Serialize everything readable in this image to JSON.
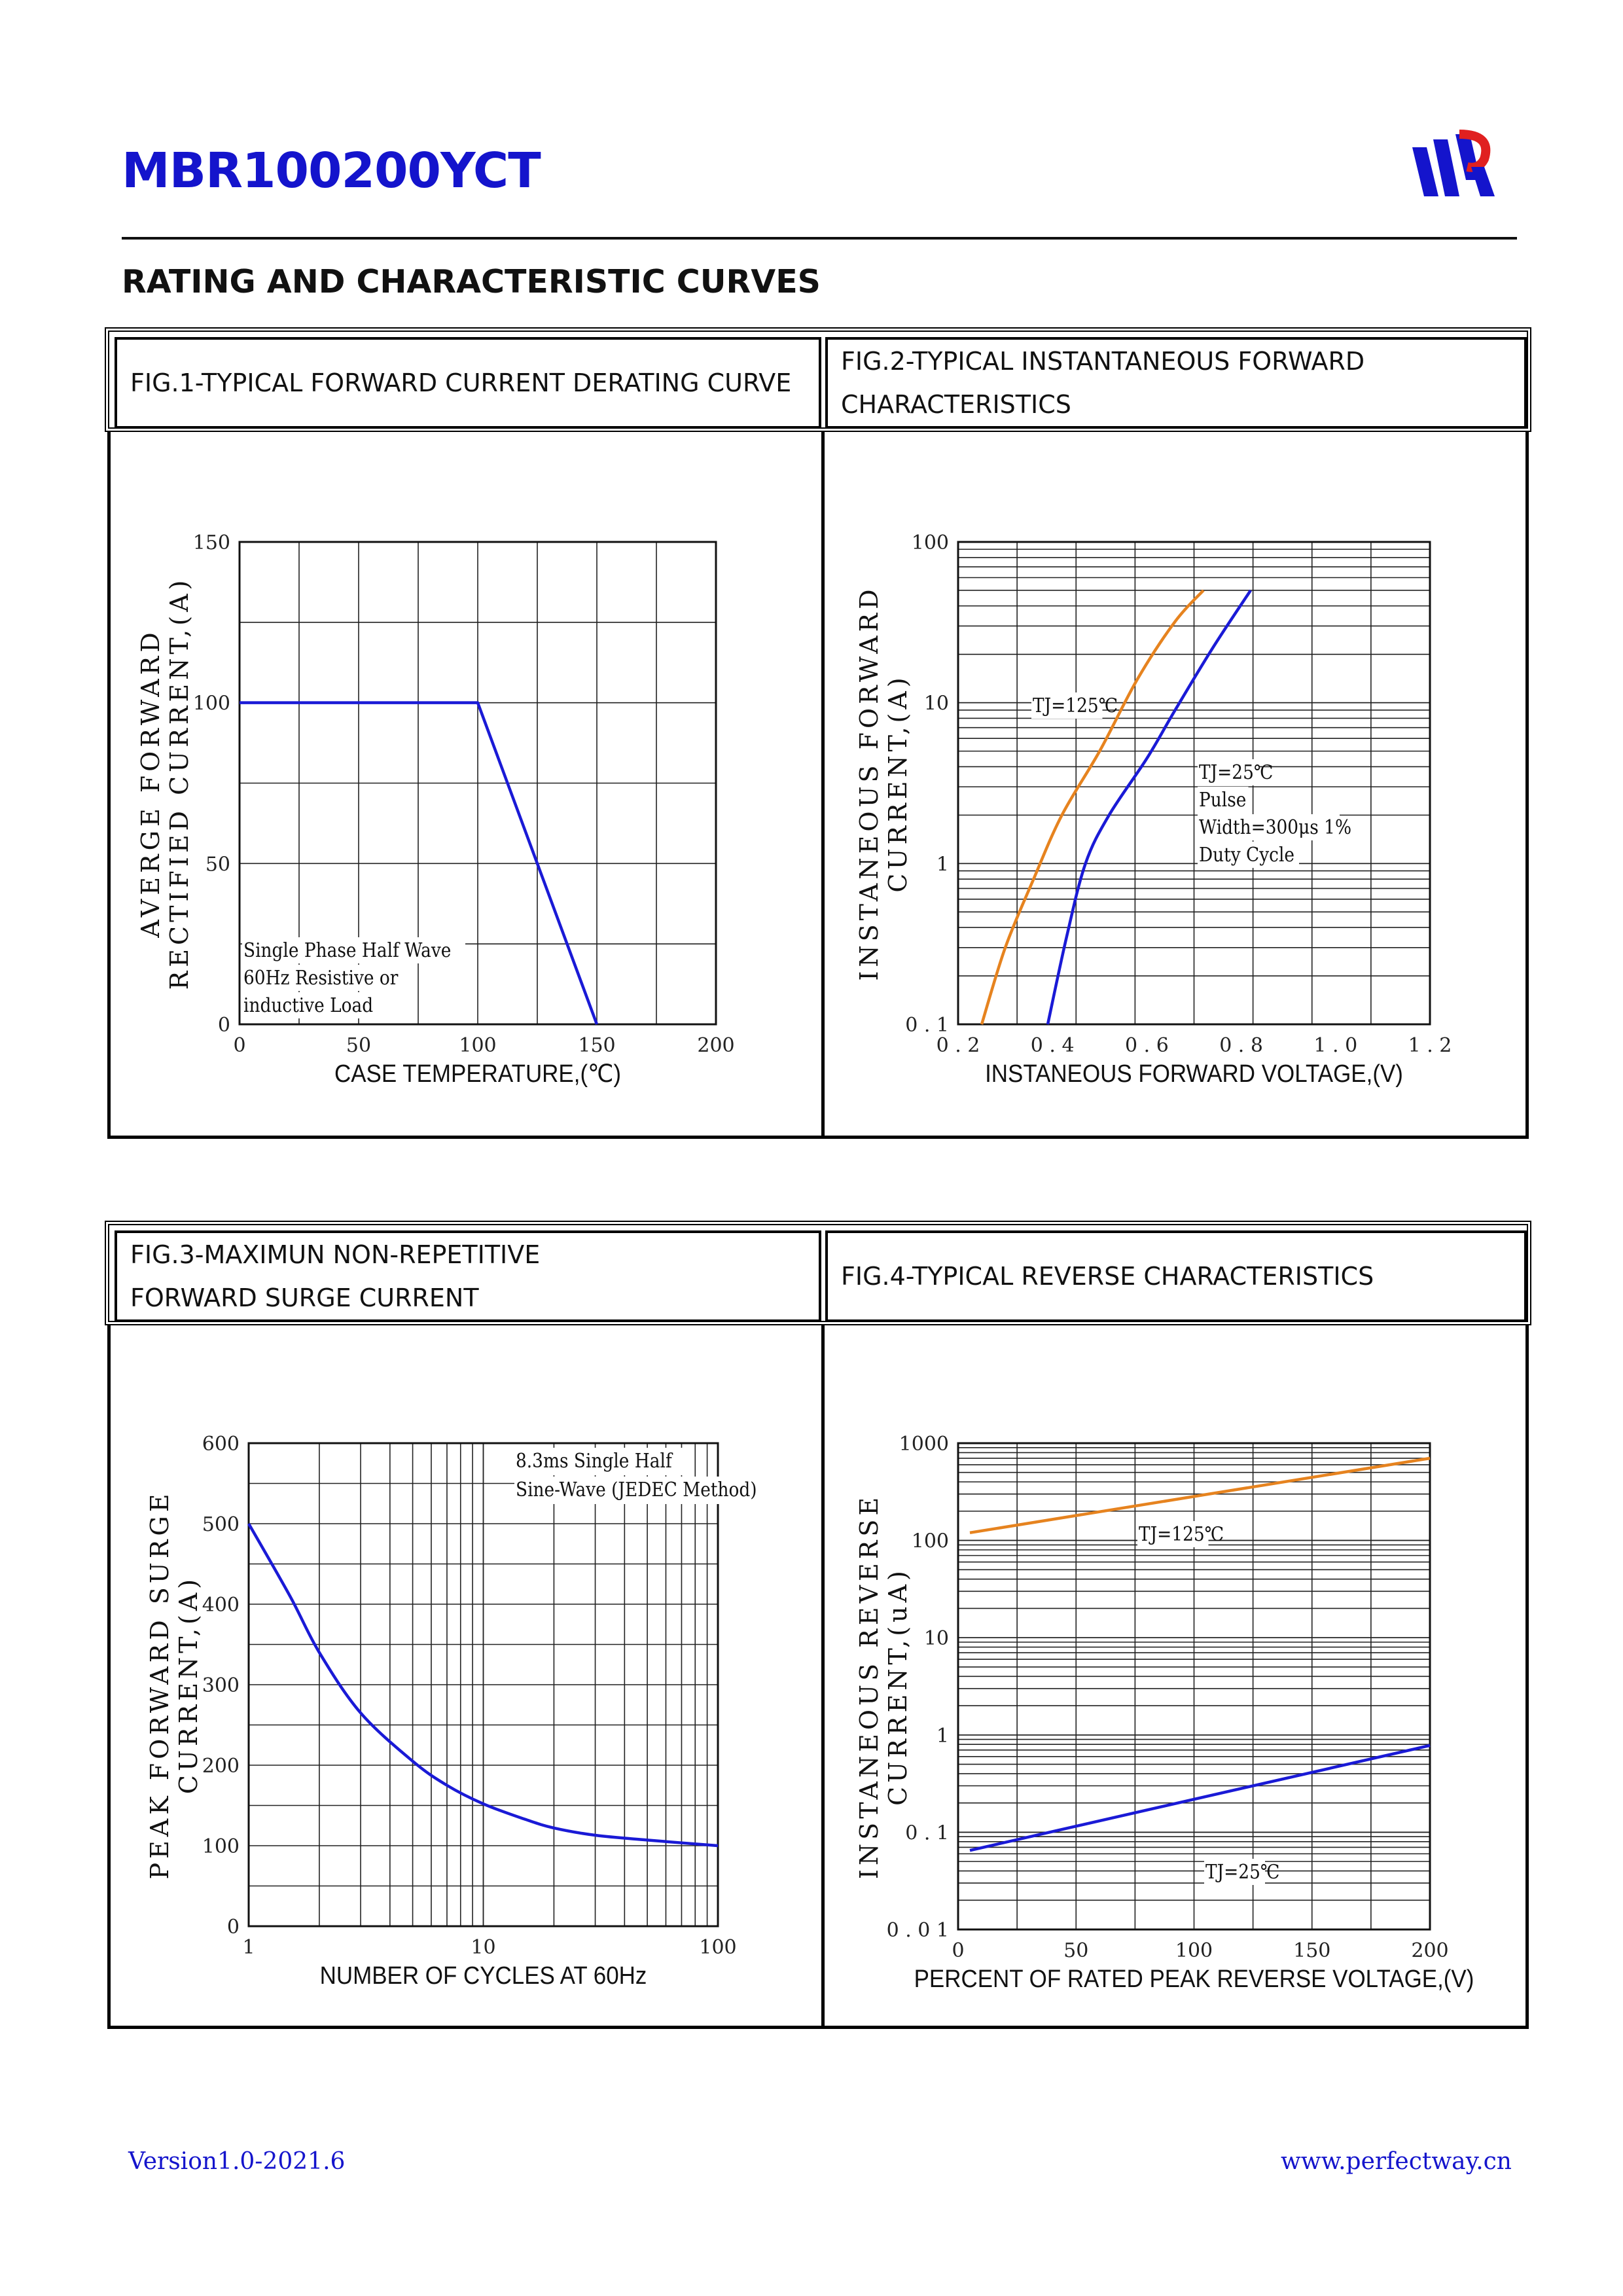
{
  "header": {
    "part_number": "MBR100200YCT",
    "section_title": "RATING AND CHARACTERISTIC CURVES"
  },
  "footer": {
    "version": "Version1.0-2021.6",
    "website": "www.perfectway.cn"
  },
  "colors": {
    "brand_blue": "#1414cc",
    "curve_blue": "#1a1ad6",
    "curve_orange": "#e6831f"
  },
  "figures": [
    {
      "title": "FIG.1-TYPICAL FORWARD CURRENT DERATING CURVE"
    },
    {
      "title_line1": "FIG.2-TYPICAL INSTANTANEOUS FORWARD",
      "title_line2": "CHARACTERISTICS"
    },
    {
      "title_line1": "FIG.3-MAXIMUN NON-REPETITIVE",
      "title_line2": "FORWARD SURGE CURRENT"
    },
    {
      "title": "FIG.4-TYPICAL REVERSE CHARACTERISTICS"
    }
  ],
  "chart_data": [
    {
      "type": "line",
      "title": "FIG.1-TYPICAL FORWARD CURRENT DERATING CURVE",
      "xlabel": "CASE TEMPERATURE,(℃)",
      "ylabel_line1": "AVERGE FORWARD",
      "ylabel_line2": "RECTIFIED CURRENT,(A)",
      "xlim": [
        0,
        200
      ],
      "ylim": [
        0,
        150
      ],
      "x_ticks": [
        "0",
        "50",
        "100",
        "150",
        "200"
      ],
      "y_ticks": [
        "0",
        "50",
        "100",
        "150"
      ],
      "annotation": [
        "Single Phase Half Wave",
        "60Hz Resistive or",
        "inductive Load"
      ],
      "series": [
        {
          "name": "derating",
          "color": "#1a1ad6",
          "x": [
            0,
            100,
            150
          ],
          "y": [
            100,
            100,
            0
          ]
        }
      ]
    },
    {
      "type": "line",
      "title": "FIG.2-TYPICAL INSTANTANEOUS FORWARD CHARACTERISTICS",
      "xlabel": "INSTANEOUS FORWARD VOLTAGE,(V)",
      "ylabel_line1": "INSTANEOUS FORWARD",
      "ylabel_line2": "CURRENT,(A)",
      "yscale": "log",
      "xlim": [
        0.2,
        1.2
      ],
      "ylim": [
        0.1,
        100
      ],
      "x_ticks": [
        "0.2",
        "0.4",
        "0.6",
        "0.8",
        "1.0",
        "1.2"
      ],
      "y_ticks": [
        "0.1",
        "1",
        "10",
        "100"
      ],
      "annotation_tj125": "TJ=125℃",
      "annotation_tj25": [
        "TJ=25℃",
        "Pulse",
        "Width=300μs 1%",
        "Duty Cycle"
      ],
      "series": [
        {
          "name": "TJ=125℃",
          "color": "#e6831f",
          "x": [
            0.25,
            0.3,
            0.36,
            0.42,
            0.5,
            0.58,
            0.66,
            0.72
          ],
          "y": [
            0.1,
            0.3,
            0.8,
            2.0,
            5.0,
            14,
            32,
            50
          ]
        },
        {
          "name": "TJ=25℃",
          "color": "#1a1ad6",
          "x": [
            0.39,
            0.43,
            0.47,
            0.52,
            0.6,
            0.66,
            0.74,
            0.82
          ],
          "y": [
            0.1,
            0.35,
            1.0,
            2.0,
            4.5,
            9,
            22,
            50
          ]
        }
      ]
    },
    {
      "type": "line",
      "title": "FIG.3-MAXIMUN NON-REPETITIVE FORWARD SURGE CURRENT",
      "xlabel": "NUMBER OF CYCLES AT 60Hz",
      "ylabel_line1": "PEAK FORWARD SURGE",
      "ylabel_line2": "CURRENT,(A)",
      "xscale": "log",
      "xlim": [
        1,
        100
      ],
      "ylim": [
        0,
        600
      ],
      "x_ticks": [
        "1",
        "10",
        "100"
      ],
      "y_ticks": [
        "0",
        "100",
        "200",
        "300",
        "400",
        "500",
        "600"
      ],
      "annotation": [
        "8.3ms Single Half",
        "Sine-Wave (JEDEC Method)"
      ],
      "series": [
        {
          "name": "surge",
          "color": "#1a1ad6",
          "x": [
            1,
            1.5,
            2,
            3,
            5,
            7,
            10,
            15,
            20,
            30,
            50,
            100
          ],
          "y": [
            500,
            410,
            340,
            265,
            205,
            175,
            152,
            133,
            122,
            113,
            107,
            100
          ]
        }
      ]
    },
    {
      "type": "line",
      "title": "FIG.4-TYPICAL REVERSE CHARACTERISTICS",
      "xlabel": "PERCENT OF RATED PEAK REVERSE VOLTAGE,(V)",
      "ylabel_line1": "INSTANEOUS REVERSE",
      "ylabel_line2": "CURRENT,(uA)",
      "yscale": "log",
      "xlim": [
        0,
        200
      ],
      "ylim": [
        0.01,
        1000
      ],
      "x_ticks": [
        "0",
        "50",
        "100",
        "150",
        "200"
      ],
      "y_ticks": [
        "0.01",
        "0.1",
        "1",
        "10",
        "100",
        "1000"
      ],
      "annotation_tj125": "TJ=125℃",
      "annotation_tj25": "TJ=25℃",
      "series": [
        {
          "name": "TJ=125℃",
          "color": "#e6831f",
          "x": [
            5,
            200
          ],
          "y": [
            120,
            700
          ]
        },
        {
          "name": "TJ=25℃",
          "color": "#1a1ad6",
          "x": [
            5,
            200
          ],
          "y": [
            0.065,
            0.78
          ]
        }
      ]
    }
  ]
}
